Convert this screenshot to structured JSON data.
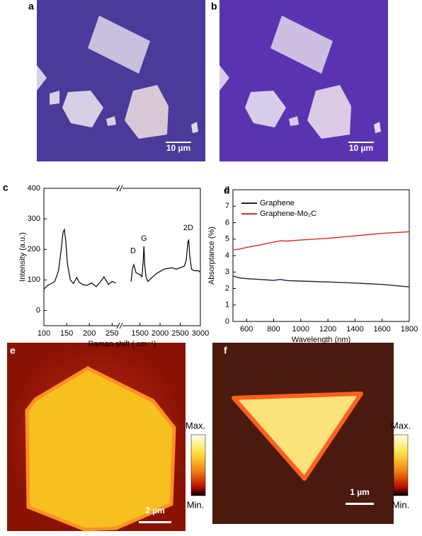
{
  "figure": {
    "panel_labels": [
      "a",
      "b",
      "c",
      "d",
      "e",
      "f"
    ],
    "scale_bars": [
      "10 µm",
      "10 µm",
      "2 µm",
      "1 µm"
    ],
    "colorbars": [
      {
        "max": "Max.",
        "min": "Min."
      },
      {
        "max": "Max.",
        "min": "Min."
      }
    ]
  },
  "chart_data": [
    {
      "type": "line",
      "xlabel": "Raman shift ( cm⁻¹)",
      "ylabel": "Intensity (a.u.)",
      "ylim": [
        -50,
        400
      ],
      "yticks": [
        0,
        100,
        200,
        300,
        400
      ],
      "color": "#000000",
      "segments": [
        {
          "xlim": [
            100,
            265
          ],
          "xticks": [
            100,
            150,
            200,
            250
          ],
          "x": [
            100,
            108,
            116,
            124,
            132,
            138,
            142,
            145,
            148,
            152,
            158,
            165,
            172,
            178,
            185,
            195,
            205,
            215,
            225,
            232,
            236,
            242,
            250,
            258
          ],
          "values": [
            70,
            82,
            88,
            95,
            130,
            200,
            255,
            265,
            230,
            150,
            100,
            88,
            108,
            92,
            85,
            82,
            90,
            78,
            95,
            110,
            100,
            85,
            95,
            90
          ]
        },
        {
          "xlim": [
            1050,
            3000
          ],
          "xticks": [
            1500,
            2000,
            2500,
            3000
          ],
          "x": [
            1280,
            1320,
            1350,
            1400,
            1450,
            1500,
            1550,
            1580,
            1600,
            1620,
            1650,
            1700,
            1800,
            1900,
            2000,
            2100,
            2200,
            2300,
            2400,
            2500,
            2600,
            2650,
            2690,
            2710,
            2740,
            2780,
            2850,
            2950,
            3000
          ],
          "values": [
            95,
            140,
            150,
            125,
            120,
            118,
            110,
            160,
            210,
            150,
            110,
            95,
            108,
            120,
            128,
            135,
            138,
            140,
            135,
            140,
            145,
            165,
            225,
            230,
            175,
            135,
            130,
            130,
            125
          ]
        }
      ],
      "annotations": [
        {
          "text": "D",
          "x": 1330,
          "y": 195
        },
        {
          "text": "G",
          "x": 1600,
          "y": 235
        },
        {
          "text": "2D",
          "x": 2700,
          "y": 270
        }
      ]
    },
    {
      "type": "line",
      "xlabel": "Wavelength  (nm)",
      "ylabel": "Absorptance  (%)",
      "xlim": [
        500,
        1800
      ],
      "xticks": [
        600,
        800,
        1000,
        1200,
        1400,
        1600,
        1800
      ],
      "ylim": [
        0,
        8
      ],
      "yticks": [
        0,
        1,
        2,
        3,
        4,
        5,
        6,
        7,
        8
      ],
      "legend": "upper left",
      "x": [
        500,
        550,
        600,
        700,
        800,
        850,
        900,
        1000,
        1200,
        1400,
        1600,
        1800
      ],
      "series": [
        {
          "name": "Graphene",
          "color": "#1c2340",
          "values": [
            2.75,
            2.65,
            2.6,
            2.55,
            2.5,
            2.55,
            2.48,
            2.45,
            2.4,
            2.33,
            2.25,
            2.1
          ]
        },
        {
          "name": "Graphene-Mo₂C",
          "color": "#d42a2a",
          "values": [
            4.35,
            4.4,
            4.5,
            4.65,
            4.82,
            4.9,
            4.88,
            4.95,
            5.05,
            5.2,
            5.35,
            5.45
          ]
        }
      ]
    }
  ]
}
